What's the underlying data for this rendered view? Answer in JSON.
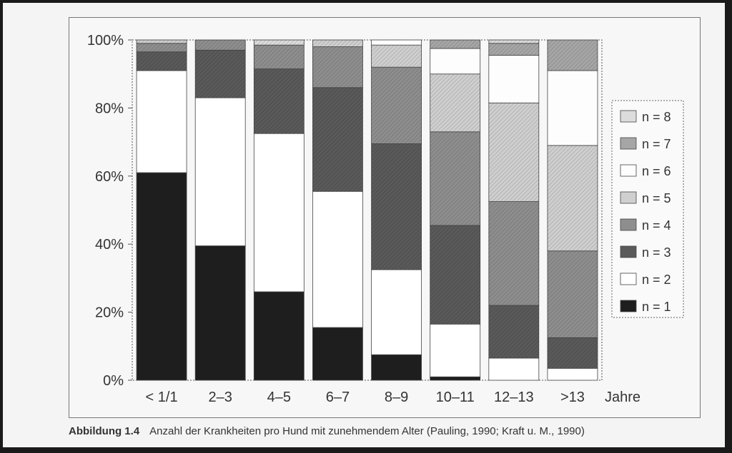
{
  "caption": {
    "figure_number": "Abbildung 1.4",
    "text": "Anzahl der Krankheiten pro Hund mit zunehmendem Alter (Pauling, 1990; Kraft u. M., 1990)"
  },
  "chart_data": {
    "type": "bar",
    "stacked": true,
    "percent": true,
    "categories": [
      "< 1/1",
      "2–3",
      "4–5",
      "6–7",
      "8–9",
      "10–11",
      "12–13",
      ">13"
    ],
    "x_unit_label": "Jahre",
    "y_ticks": [
      "0%",
      "20%",
      "40%",
      "60%",
      "80%",
      "100%"
    ],
    "ylim": [
      0,
      100
    ],
    "legend_position": "right",
    "series": [
      {
        "name": "n = 1",
        "color": "#1e1e1e",
        "values": [
          61,
          39.5,
          26,
          15.5,
          7.5,
          1,
          0,
          0
        ]
      },
      {
        "name": "n = 2",
        "color": "#ffffff",
        "values": [
          30,
          43.5,
          46.5,
          40,
          25,
          15.5,
          6.5,
          3.5
        ]
      },
      {
        "name": "n = 3",
        "color": "#5a5a5a",
        "values": [
          5.5,
          14,
          19,
          30.5,
          37,
          29,
          15.5,
          9
        ]
      },
      {
        "name": "n = 4",
        "color": "#8e8e8e",
        "values": [
          2.5,
          3,
          7,
          12,
          22.5,
          27.5,
          30.5,
          25.5
        ]
      },
      {
        "name": "n = 5",
        "color": "#cfcfcf",
        "values": [
          1,
          0,
          0,
          2,
          6.5,
          17,
          29,
          31
        ]
      },
      {
        "name": "n = 6",
        "color": "#fdfdfd",
        "values": [
          0,
          0,
          0,
          0,
          1.5,
          7.5,
          14,
          22
        ]
      },
      {
        "name": "n = 7",
        "color": "#a6a6a6",
        "values": [
          0,
          0,
          0,
          0,
          0,
          2.5,
          3.5,
          9
        ]
      },
      {
        "name": "n = 8",
        "color": "#dcdcdc",
        "values": [
          0,
          0,
          1.5,
          0,
          0,
          0,
          1,
          0
        ]
      }
    ]
  }
}
